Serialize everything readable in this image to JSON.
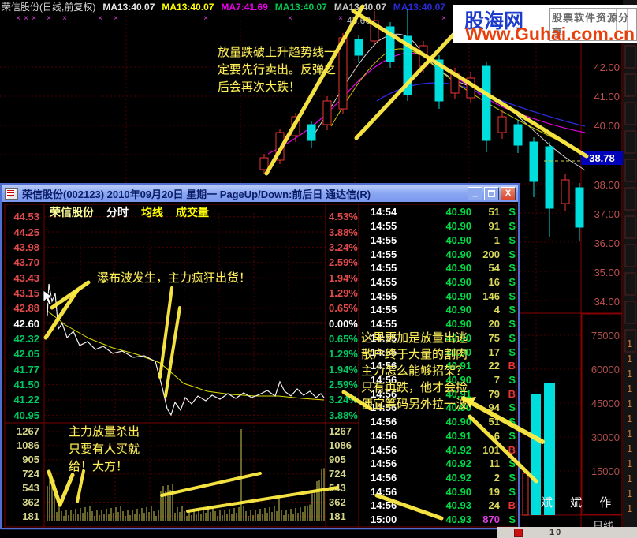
{
  "top_bar": {
    "instrument": "荣信股份(日线,前复权)",
    "ma_labels": [
      {
        "text": "MA13:40.07",
        "color": "#e8e8e8"
      },
      {
        "text": "MA13:40.07",
        "color": "#ffff00"
      },
      {
        "text": "MA7:41.69",
        "color": "#e800e8"
      },
      {
        "text": "MA13:40.07",
        "color": "#00c850"
      },
      {
        "text": "MA13:40.07",
        "color": "#c8c8c8"
      },
      {
        "text": "MA13:40.07",
        "color": "#2a2ad8"
      }
    ]
  },
  "watermark": {
    "site": "股海网",
    "tagline": "股票软件资源分享",
    "url": "Www.Guhai.com.cn"
  },
  "daily_chart": {
    "high_label": "43.60",
    "last_price": "38.78",
    "price_axis": [
      "42.00",
      "41.00",
      "40.00",
      "38.00",
      "37.00",
      "36.00",
      "35.00",
      "34.00"
    ],
    "volume_axis": [
      "75000",
      "60000",
      "45000",
      "30000",
      "15000"
    ],
    "period_label": "日线",
    "signature": "斌 斌 作",
    "annotation_lines": [
      "放量跌破上升趋势线一",
      "定要先行卖出。反弹之",
      "后会再次大跌！"
    ]
  },
  "popup": {
    "title": "荣信股份(002123)  2010年09月20日  星期一  PageUp/Down:前后日  通达信(R)",
    "buttons": {
      "minimize": "_",
      "close": "X"
    },
    "legend": [
      {
        "text": "荣信股份",
        "color": "#ffff99"
      },
      {
        "text": "分时",
        "color": "#ffffff"
      },
      {
        "text": "均线",
        "color": "#ffff00"
      },
      {
        "text": "成交量",
        "color": "#ffff00"
      }
    ],
    "price_axis": [
      {
        "v": "44.53",
        "tone": "up"
      },
      {
        "v": "44.25",
        "tone": "up"
      },
      {
        "v": "43.98",
        "tone": "up"
      },
      {
        "v": "43.70",
        "tone": "up"
      },
      {
        "v": "43.43",
        "tone": "up"
      },
      {
        "v": "43.15",
        "tone": "up"
      },
      {
        "v": "42.88",
        "tone": "up"
      },
      {
        "v": "42.60",
        "tone": "flat"
      },
      {
        "v": "42.32",
        "tone": "down"
      },
      {
        "v": "42.05",
        "tone": "down"
      },
      {
        "v": "41.77",
        "tone": "down"
      },
      {
        "v": "41.50",
        "tone": "down"
      },
      {
        "v": "41.22",
        "tone": "down"
      },
      {
        "v": "40.95",
        "tone": "down"
      }
    ],
    "volume_axis": [
      "1267",
      "1086",
      "905",
      "724",
      "543",
      "362",
      "181"
    ],
    "pct_axis": [
      {
        "v": "4.53%",
        "tone": "up"
      },
      {
        "v": "3.88%",
        "tone": "up"
      },
      {
        "v": "3.24%",
        "tone": "up"
      },
      {
        "v": "2.59%",
        "tone": "up"
      },
      {
        "v": "1.94%",
        "tone": "up"
      },
      {
        "v": "1.29%",
        "tone": "up"
      },
      {
        "v": "0.65%",
        "tone": "up"
      },
      {
        "v": "0.00%",
        "tone": "flat"
      },
      {
        "v": "0.65%",
        "tone": "down"
      },
      {
        "v": "1.29%",
        "tone": "down"
      },
      {
        "v": "1.94%",
        "tone": "down"
      },
      {
        "v": "2.59%",
        "tone": "down"
      },
      {
        "v": "3.24%",
        "tone": "down"
      },
      {
        "v": "3.88%",
        "tone": "down"
      }
    ],
    "volume_axis_right": [
      "1267",
      "1086",
      "905",
      "724",
      "543",
      "362",
      "181"
    ],
    "annotations": {
      "waterfall": "瀑布波发生，主力疯狂出货！",
      "sell_lines": [
        "主力放量杀出",
        "只要有人买就",
        "给！大方！"
      ],
      "escape_lines": [
        "这里更加是放量出逃",
        "散户终于大量的割肉",
        "主力怎么能够招架？",
        "只有再跌，他才会捡",
        "便宜筹码另外拉一波"
      ]
    },
    "tape": [
      {
        "time": "14:54",
        "price": "40.90",
        "vol": "51",
        "side": "S"
      },
      {
        "time": "14:55",
        "price": "40.90",
        "vol": "91",
        "side": "S"
      },
      {
        "time": "14:55",
        "price": "40.90",
        "vol": "1",
        "side": "S"
      },
      {
        "time": "14:55",
        "price": "40.90",
        "vol": "200",
        "side": "S"
      },
      {
        "time": "14:55",
        "price": "40.90",
        "vol": "54",
        "side": "S"
      },
      {
        "time": "14:55",
        "price": "40.90",
        "vol": "16",
        "side": "S"
      },
      {
        "time": "14:55",
        "price": "40.90",
        "vol": "146",
        "side": "S"
      },
      {
        "time": "14:55",
        "price": "40.90",
        "vol": "4",
        "side": "S"
      },
      {
        "time": "14:55",
        "price": "40.90",
        "vol": "20",
        "side": "S"
      },
      {
        "time": "14:55",
        "price": "40.90",
        "vol": "75",
        "side": "S"
      },
      {
        "time": "14:55",
        "price": "40.90",
        "vol": "17",
        "side": "S"
      },
      {
        "time": "14:56",
        "price": "40.91",
        "vol": "22",
        "side": "B"
      },
      {
        "time": "14:56",
        "price": "40.90",
        "vol": "7",
        "side": "S"
      },
      {
        "time": "14:56",
        "price": "40.91",
        "vol": "79",
        "side": "B"
      },
      {
        "time": "14:56",
        "price": "40.90",
        "vol": "94",
        "side": "S"
      },
      {
        "time": "14:56",
        "price": "40.90",
        "vol": "51",
        "side": "S"
      },
      {
        "time": "14:56",
        "price": "40.91",
        "vol": "6",
        "side": "S"
      },
      {
        "time": "14:56",
        "price": "40.92",
        "vol": "101",
        "side": "B"
      },
      {
        "time": "14:56",
        "price": "40.92",
        "vol": "11",
        "side": "S"
      },
      {
        "time": "14:56",
        "price": "40.92",
        "vol": "2",
        "side": "S"
      },
      {
        "time": "14:56",
        "price": "40.90",
        "vol": "19",
        "side": "S"
      },
      {
        "time": "14:56",
        "price": "40.93",
        "vol": "24",
        "side": "B"
      },
      {
        "time": "15:00",
        "price": "40.93",
        "vol": "870",
        "side": "S",
        "big": true
      }
    ]
  },
  "bottom_bar": {
    "page_label": "10"
  }
}
